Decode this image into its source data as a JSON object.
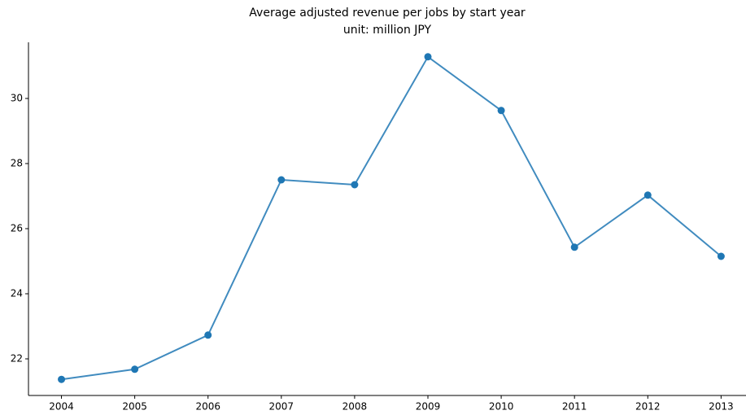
{
  "chart_data": {
    "type": "line",
    "title": "Average adjusted revenue per jobs by start year",
    "subtitle": "unit: million JPY",
    "x": [
      2004,
      2005,
      2006,
      2007,
      2008,
      2009,
      2010,
      2011,
      2012,
      2013
    ],
    "xlim": [
      2003.55,
      2013.34
    ],
    "xticks": [
      2004,
      2005,
      2006,
      2007,
      2008,
      2009,
      2010,
      2011,
      2012,
      2013
    ],
    "ylim": [
      20.875,
      31.725
    ],
    "yticks": [
      22,
      24,
      26,
      28,
      30
    ],
    "series": [
      {
        "color": "#1f77b4",
        "values": [
          21.37,
          21.68,
          22.73,
          27.5,
          27.35,
          31.28,
          29.63,
          25.43,
          27.03,
          25.15
        ]
      }
    ]
  }
}
